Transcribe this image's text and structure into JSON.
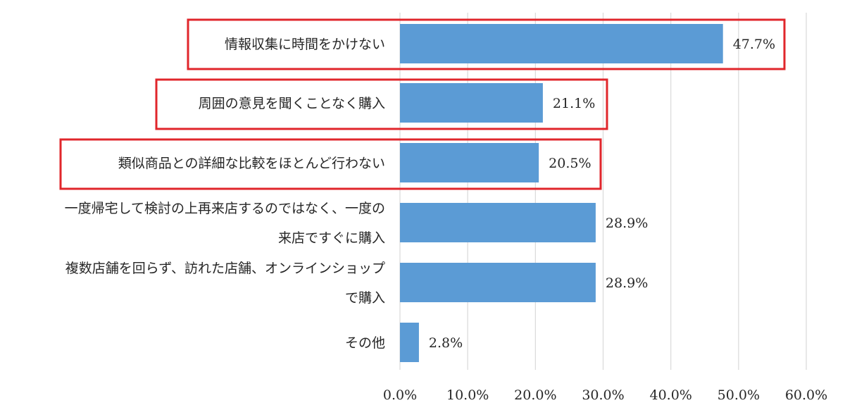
{
  "chart_data": {
    "type": "bar",
    "orientation": "horizontal",
    "title": "",
    "xlabel": "",
    "ylabel": "",
    "xlim": [
      0,
      60
    ],
    "x_ticks": [
      "0.0%",
      "10.0%",
      "20.0%",
      "30.0%",
      "40.0%",
      "50.0%",
      "60.0%"
    ],
    "grid": "vertical",
    "bar_color": "#5b9bd5",
    "highlight_color": "#e0262b",
    "categories": [
      "情報収集に時間をかけない",
      "周囲の意見を聞くことなく購入",
      "類似商品との詳細な比較をほとんど行わない",
      "一度帰宅して検討の上再来店するのではなく、一度の来店ですぐに購入",
      "複数店舗を回らず、訪れた店舗、オンラインショップで購入",
      "その他"
    ],
    "category_lines": [
      [
        "情報収集に時間をかけない"
      ],
      [
        "周囲の意見を聞くことなく購入"
      ],
      [
        "類似商品との詳細な比較をほとんど行わない"
      ],
      [
        "一度帰宅して検討の上再来店するのではなく、一度の",
        "来店ですぐに購入"
      ],
      [
        "複数店舗を回らず、訪れた店舗、オンラインショップ",
        "で購入"
      ],
      [
        "その他"
      ]
    ],
    "values": [
      47.7,
      21.1,
      20.5,
      28.9,
      28.9,
      2.8
    ],
    "value_labels": [
      "47.7%",
      "21.1%",
      "20.5%",
      "28.9%",
      "28.9%",
      "2.8%"
    ],
    "highlighted": [
      true,
      true,
      true,
      false,
      false,
      false
    ]
  }
}
